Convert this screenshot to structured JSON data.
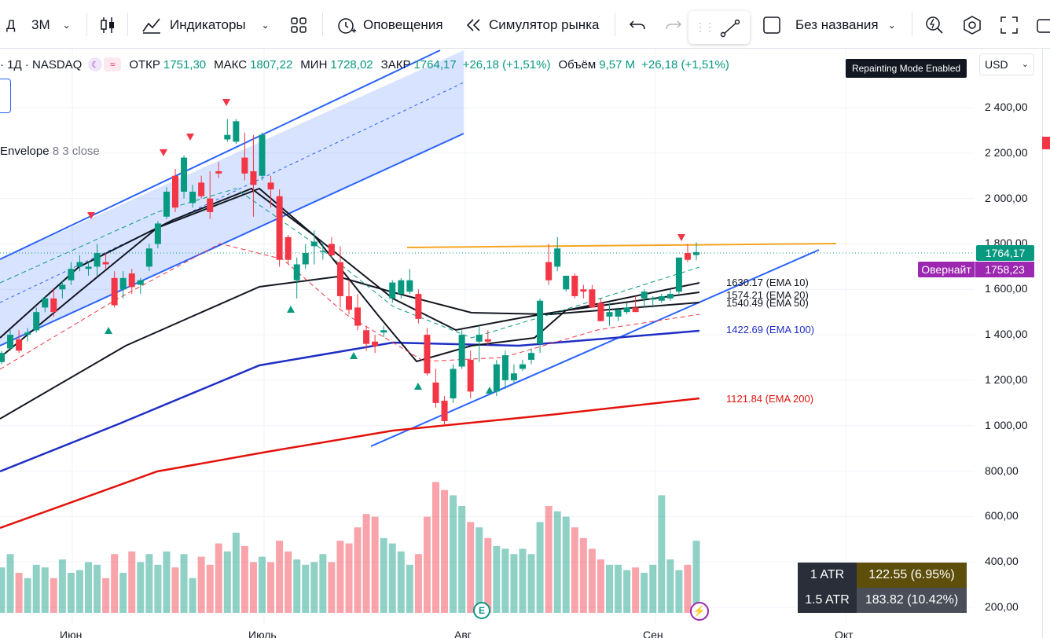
{
  "toolbar": {
    "interval_short": "Д",
    "interval": "3M",
    "indicators_label": "Индикаторы",
    "alerts_label": "Оповещения",
    "replay_label": "Симулятор рынка",
    "layout_name": "Без названия"
  },
  "legend": {
    "symbol": "· 1Д · NASDAQ",
    "open_label": "ОТКР",
    "open_value": "1751,30",
    "high_label": "МАКС",
    "high_value": "1807,22",
    "low_label": "МИН",
    "low_value": "1728,02",
    "close_label": "ЗАКР",
    "close_value": "1764,17",
    "change": "+26,18 (+1,51%)",
    "volume_label": "Объём",
    "volume_value": "9,57 M",
    "volume_change": "+26,18 (+1,51%)"
  },
  "envelope": {
    "name": "Envelope",
    "params": "8 3 close"
  },
  "tooltip": "Repainting Mode Enabled",
  "currency": "USD",
  "price_axis": [
    "2 400,00",
    "2 200,00",
    "2 000,00",
    "1 800,00",
    "1 600,00",
    "1 400,00",
    "1 200,00",
    "1 000,00",
    "800,00",
    "600,00",
    "400,00",
    "200,00"
  ],
  "last_price": "1764,17",
  "overnight_label": "Овернайт",
  "overnight_price": "1758,23",
  "ema": {
    "ema10": "1630.17 (EMA 10)",
    "ema20": "1574.21 (EMA 20)",
    "ema50": "1540.49 (EMA 50)",
    "ema100": "1422.69 (EMA 100)",
    "ema200": "1121.84 (EMA 200)"
  },
  "atr": [
    {
      "label": "1 ATR",
      "value": "122.55 (6.95%)"
    },
    {
      "label": "1.5 ATR",
      "value": "183.82 (10.42%)"
    }
  ],
  "time_axis": [
    "Июн",
    "Июль",
    "Авг",
    "Сен",
    "Окт"
  ],
  "colors": {
    "up": "#089981",
    "down": "#f23645",
    "ema200": "#e3120b",
    "ema100": "#1e2fc4",
    "channel": "#2962ff",
    "resistance": "#f5a623",
    "overnight": "#9c27b0",
    "atr1_bg": "#5d4e0b",
    "atr2_bg": "#4a4e59"
  },
  "chart_data": {
    "type": "candlestick",
    "ylim": [
      200,
      2400
    ],
    "candles": [
      {
        "o": 1280,
        "h": 1330,
        "l": 1270,
        "c": 1320
      },
      {
        "o": 1340,
        "h": 1420,
        "l": 1330,
        "c": 1400
      },
      {
        "o": 1380,
        "h": 1420,
        "l": 1320,
        "c": 1330
      },
      {
        "o": 1400,
        "h": 1430,
        "l": 1370,
        "c": 1410
      },
      {
        "o": 1420,
        "h": 1520,
        "l": 1410,
        "c": 1500
      },
      {
        "o": 1520,
        "h": 1570,
        "l": 1500,
        "c": 1560
      },
      {
        "o": 1560,
        "h": 1600,
        "l": 1480,
        "c": 1500
      },
      {
        "o": 1600,
        "h": 1640,
        "l": 1560,
        "c": 1620
      },
      {
        "o": 1640,
        "h": 1720,
        "l": 1620,
        "c": 1690
      },
      {
        "o": 1700,
        "h": 1750,
        "l": 1680,
        "c": 1720
      },
      {
        "o": 1690,
        "h": 1720,
        "l": 1660,
        "c": 1700
      },
      {
        "o": 1700,
        "h": 1800,
        "l": 1660,
        "c": 1760
      },
      {
        "o": 1720,
        "h": 1760,
        "l": 1690,
        "c": 1710
      },
      {
        "o": 1650,
        "h": 1680,
        "l": 1520,
        "c": 1530
      },
      {
        "o": 1600,
        "h": 1680,
        "l": 1560,
        "c": 1650
      },
      {
        "o": 1670,
        "h": 1690,
        "l": 1580,
        "c": 1610
      },
      {
        "o": 1620,
        "h": 1650,
        "l": 1580,
        "c": 1640
      },
      {
        "o": 1700,
        "h": 1800,
        "l": 1680,
        "c": 1780
      },
      {
        "o": 1800,
        "h": 1900,
        "l": 1780,
        "c": 1890
      },
      {
        "o": 1920,
        "h": 2050,
        "l": 1910,
        "c": 2030
      },
      {
        "o": 2100,
        "h": 2130,
        "l": 1940,
        "c": 1960
      },
      {
        "o": 2030,
        "h": 2190,
        "l": 2000,
        "c": 2180
      },
      {
        "o": 1980,
        "h": 2060,
        "l": 1960,
        "c": 2030
      },
      {
        "o": 2070,
        "h": 2100,
        "l": 2000,
        "c": 2010
      },
      {
        "o": 2000,
        "h": 2120,
        "l": 1910,
        "c": 1940
      },
      {
        "o": 2120,
        "h": 2160,
        "l": 2090,
        "c": 2110
      },
      {
        "o": 2260,
        "h": 2350,
        "l": 2250,
        "c": 2280
      },
      {
        "o": 2250,
        "h": 2350,
        "l": 2240,
        "c": 2340
      },
      {
        "o": 2180,
        "h": 2290,
        "l": 2080,
        "c": 2110
      },
      {
        "o": 2120,
        "h": 2280,
        "l": 1920,
        "c": 2060
      },
      {
        "o": 2100,
        "h": 2290,
        "l": 2080,
        "c": 2280
      },
      {
        "o": 2070,
        "h": 2100,
        "l": 1960,
        "c": 2040
      },
      {
        "o": 2010,
        "h": 2040,
        "l": 1700,
        "c": 1730
      },
      {
        "o": 1830,
        "h": 1840,
        "l": 1710,
        "c": 1730
      },
      {
        "o": 1640,
        "h": 1740,
        "l": 1560,
        "c": 1710
      },
      {
        "o": 1710,
        "h": 1800,
        "l": 1690,
        "c": 1760
      },
      {
        "o": 1790,
        "h": 1860,
        "l": 1710,
        "c": 1810
      },
      {
        "o": 1770,
        "h": 1810,
        "l": 1730,
        "c": 1770
      },
      {
        "o": 1800,
        "h": 1830,
        "l": 1740,
        "c": 1750
      },
      {
        "o": 1720,
        "h": 1790,
        "l": 1520,
        "c": 1570
      },
      {
        "o": 1570,
        "h": 1640,
        "l": 1490,
        "c": 1510
      },
      {
        "o": 1520,
        "h": 1580,
        "l": 1420,
        "c": 1440
      },
      {
        "o": 1420,
        "h": 1440,
        "l": 1330,
        "c": 1360
      },
      {
        "o": 1370,
        "h": 1400,
        "l": 1320,
        "c": 1350
      },
      {
        "o": 1410,
        "h": 1440,
        "l": 1390,
        "c": 1420
      },
      {
        "o": 1560,
        "h": 1640,
        "l": 1540,
        "c": 1630
      },
      {
        "o": 1580,
        "h": 1650,
        "l": 1560,
        "c": 1640
      },
      {
        "o": 1590,
        "h": 1690,
        "l": 1580,
        "c": 1640
      },
      {
        "o": 1580,
        "h": 1600,
        "l": 1450,
        "c": 1470
      },
      {
        "o": 1400,
        "h": 1430,
        "l": 1220,
        "c": 1230
      },
      {
        "o": 1190,
        "h": 1250,
        "l": 1080,
        "c": 1100
      },
      {
        "o": 1110,
        "h": 1130,
        "l": 1000,
        "c": 1020
      },
      {
        "o": 1120,
        "h": 1270,
        "l": 1100,
        "c": 1250
      },
      {
        "o": 1260,
        "h": 1420,
        "l": 1250,
        "c": 1400
      },
      {
        "o": 1290,
        "h": 1330,
        "l": 1120,
        "c": 1150
      },
      {
        "o": 1370,
        "h": 1440,
        "l": 1280,
        "c": 1400
      },
      {
        "o": 1380,
        "h": 1420,
        "l": 1350,
        "c": 1370
      },
      {
        "o": 1150,
        "h": 1290,
        "l": 1130,
        "c": 1270
      },
      {
        "o": 1200,
        "h": 1330,
        "l": 1160,
        "c": 1310
      },
      {
        "o": 1200,
        "h": 1270,
        "l": 1190,
        "c": 1230
      },
      {
        "o": 1250,
        "h": 1290,
        "l": 1240,
        "c": 1270
      },
      {
        "o": 1290,
        "h": 1340,
        "l": 1270,
        "c": 1320
      },
      {
        "o": 1360,
        "h": 1560,
        "l": 1320,
        "c": 1550
      },
      {
        "o": 1720,
        "h": 1800,
        "l": 1620,
        "c": 1640
      },
      {
        "o": 1700,
        "h": 1830,
        "l": 1680,
        "c": 1780
      },
      {
        "o": 1600,
        "h": 1660,
        "l": 1590,
        "c": 1660
      },
      {
        "o": 1660,
        "h": 1670,
        "l": 1560,
        "c": 1570
      },
      {
        "o": 1600,
        "h": 1620,
        "l": 1560,
        "c": 1590
      },
      {
        "o": 1600,
        "h": 1620,
        "l": 1520,
        "c": 1520
      },
      {
        "o": 1540,
        "h": 1560,
        "l": 1460,
        "c": 1460
      },
      {
        "o": 1480,
        "h": 1540,
        "l": 1440,
        "c": 1500
      },
      {
        "o": 1480,
        "h": 1520,
        "l": 1460,
        "c": 1510
      },
      {
        "o": 1500,
        "h": 1540,
        "l": 1490,
        "c": 1520
      },
      {
        "o": 1520,
        "h": 1570,
        "l": 1500,
        "c": 1500
      },
      {
        "o": 1560,
        "h": 1600,
        "l": 1520,
        "c": 1590
      },
      {
        "o": 1560,
        "h": 1570,
        "l": 1520,
        "c": 1560
      },
      {
        "o": 1550,
        "h": 1580,
        "l": 1540,
        "c": 1570
      },
      {
        "o": 1560,
        "h": 1600,
        "l": 1550,
        "c": 1580
      },
      {
        "o": 1590,
        "h": 1740,
        "l": 1580,
        "c": 1740
      },
      {
        "o": 1760,
        "h": 1800,
        "l": 1720,
        "c": 1730
      },
      {
        "o": 1751,
        "h": 1807,
        "l": 1728,
        "c": 1764
      }
    ],
    "volume": [
      370,
      420,
      350,
      330,
      380,
      370,
      330,
      400,
      350,
      360,
      390,
      380,
      330,
      420,
      350,
      430,
      390,
      420,
      380,
      430,
      370,
      420,
      330,
      410,
      380,
      460,
      430,
      500,
      450,
      390,
      410,
      390,
      470,
      430,
      400,
      380,
      390,
      420,
      390,
      470,
      460,
      520,
      570,
      560,
      480,
      460,
      430,
      380,
      420,
      560,
      690,
      660,
      640,
      600,
      540,
      520,
      480,
      450,
      440,
      420,
      440,
      420,
      540,
      600,
      580,
      560,
      520,
      480,
      440,
      400,
      380,
      380,
      360,
      370,
      350,
      380,
      640,
      400,
      360,
      380,
      470
    ]
  }
}
